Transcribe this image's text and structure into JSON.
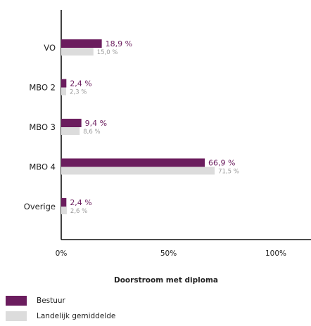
{
  "chart_data": {
    "type": "bar",
    "orientation": "horizontal",
    "categories": [
      "VO",
      "MBO 2",
      "MBO 3",
      "MBO 4",
      "Overige"
    ],
    "series": [
      {
        "name": "Bestuur",
        "values": [
          18.9,
          2.4,
          9.4,
          66.9,
          2.4
        ],
        "labels": [
          "18,9 %",
          "2,4 %",
          "9,4 %",
          "66,9 %",
          "2,4 %"
        ],
        "color": "#6b1d5e"
      },
      {
        "name": "Landelijk gemiddelde",
        "values": [
          15.0,
          2.3,
          8.6,
          71.5,
          2.6
        ],
        "labels": [
          "15,0 %",
          "2,3 %",
          "8,6 %",
          "71,5 %",
          "2,6 %"
        ],
        "color": "#dcdcdc",
        "label_color": "#9a9a9a"
      }
    ],
    "xlim": [
      0,
      100
    ],
    "xticks": [
      0,
      50,
      100
    ],
    "xtick_labels": [
      "0%",
      "50%",
      "100%"
    ],
    "xlabel": "Doorstroom met diploma",
    "grid": false,
    "legend_position": "bottom-left"
  }
}
